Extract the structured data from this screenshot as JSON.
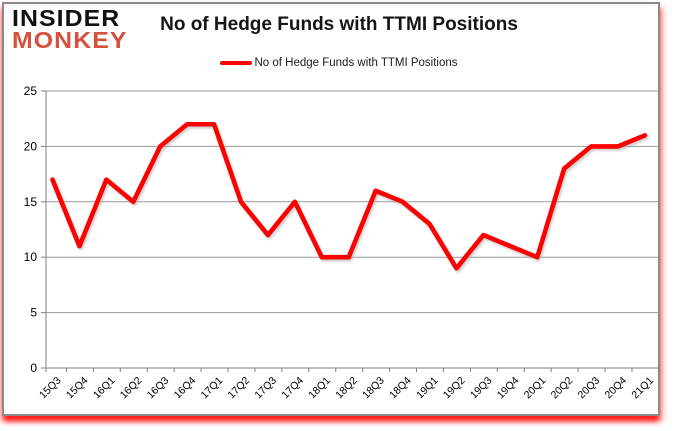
{
  "brand": {
    "line1": "INSIDER",
    "line2": "MONKEY",
    "line1_color": "#111111",
    "line2_color": "#d6503e"
  },
  "header": {
    "title": "No of Hedge Funds with TTMI Positions"
  },
  "legend": {
    "label": "No of Hedge Funds with TTMI Positions",
    "swatch_color": "#ff0000"
  },
  "chart_data": {
    "type": "line",
    "title": "No of Hedge Funds with TTMI Positions",
    "categories": [
      "15Q3",
      "15Q4",
      "16Q1",
      "16Q2",
      "16Q3",
      "16Q4",
      "17Q1",
      "17Q2",
      "17Q3",
      "17Q4",
      "18Q1",
      "18Q2",
      "18Q3",
      "18Q4",
      "19Q1",
      "19Q2",
      "19Q3",
      "19Q4",
      "20Q1",
      "20Q2",
      "20Q3",
      "20Q4",
      "21Q1"
    ],
    "series": [
      {
        "name": "No of Hedge Funds with TTMI Positions",
        "color": "#ff0000",
        "values": [
          17,
          11,
          17,
          15,
          20,
          22,
          22,
          15,
          12,
          15,
          10,
          10,
          16,
          15,
          13,
          9,
          12,
          11,
          10,
          18,
          20,
          20,
          21
        ]
      }
    ],
    "xlabel": "",
    "ylabel": "",
    "ylim": [
      0,
      25
    ],
    "yticks": [
      0,
      5,
      10,
      15,
      20,
      25
    ],
    "grid": "horizontal",
    "legend_position": "top",
    "x_label_rotation_deg": -45
  }
}
